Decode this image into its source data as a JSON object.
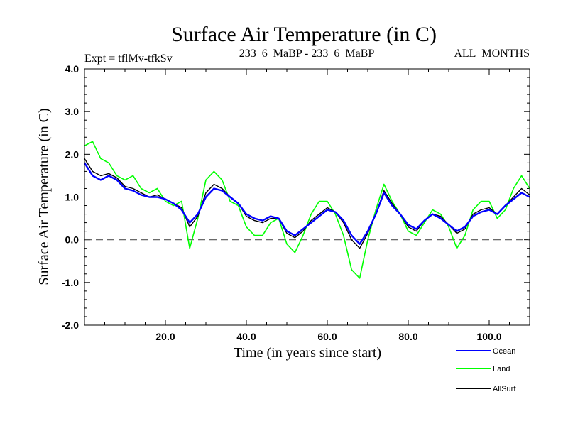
{
  "chart_data": {
    "type": "line",
    "title": "Surface Air Temperature (in C)",
    "subtitle_left": "Expt = tflMv-tfkSv",
    "subtitle_center": "233_6_MaBP - 233_6_MaBP",
    "subtitle_right": "ALL_MONTHS",
    "xlabel": "Time (in years since start)",
    "ylabel": "Surface Air Temperature (in C)",
    "xlim": [
      0,
      110
    ],
    "ylim": [
      -2.0,
      4.0
    ],
    "xticks": [
      20.0,
      40.0,
      60.0,
      80.0,
      100.0
    ],
    "xtick_labels": [
      "20.0",
      "40.0",
      "60.0",
      "80.0",
      "100.0"
    ],
    "yticks": [
      -2.0,
      -1.0,
      0.0,
      1.0,
      2.0,
      3.0,
      4.0
    ],
    "ytick_labels": [
      "-2.0",
      "-1.0",
      "0.0",
      "1.0",
      "2.0",
      "3.0",
      "4.0"
    ],
    "reference_line": {
      "y": 0.0,
      "style": "dashed"
    },
    "x": [
      0,
      2,
      4,
      6,
      8,
      10,
      12,
      14,
      16,
      18,
      20,
      22,
      24,
      26,
      28,
      30,
      32,
      34,
      36,
      38,
      40,
      42,
      44,
      46,
      48,
      50,
      52,
      54,
      56,
      58,
      60,
      62,
      64,
      66,
      68,
      70,
      72,
      74,
      76,
      78,
      80,
      82,
      84,
      86,
      88,
      90,
      92,
      94,
      96,
      98,
      100,
      102,
      104,
      106,
      108,
      110
    ],
    "series": [
      {
        "name": "Ocean",
        "color": "#0000ff",
        "values": [
          1.8,
          1.5,
          1.4,
          1.5,
          1.4,
          1.2,
          1.15,
          1.05,
          1.0,
          1.0,
          0.95,
          0.85,
          0.7,
          0.4,
          0.6,
          1.0,
          1.2,
          1.15,
          1.0,
          0.85,
          0.6,
          0.5,
          0.45,
          0.55,
          0.5,
          0.2,
          0.1,
          0.25,
          0.4,
          0.55,
          0.7,
          0.65,
          0.45,
          0.1,
          -0.1,
          0.2,
          0.6,
          1.1,
          0.8,
          0.6,
          0.35,
          0.25,
          0.45,
          0.6,
          0.5,
          0.35,
          0.2,
          0.3,
          0.55,
          0.65,
          0.7,
          0.6,
          0.8,
          0.95,
          1.1,
          1.0
        ]
      },
      {
        "name": "Land",
        "color": "#00ff00",
        "values": [
          2.2,
          2.3,
          1.9,
          1.8,
          1.5,
          1.4,
          1.5,
          1.2,
          1.1,
          1.2,
          0.9,
          0.8,
          0.9,
          -0.2,
          0.5,
          1.4,
          1.6,
          1.4,
          0.9,
          0.8,
          0.3,
          0.1,
          0.1,
          0.4,
          0.5,
          -0.1,
          -0.3,
          0.1,
          0.6,
          0.9,
          0.9,
          0.6,
          0.1,
          -0.7,
          -0.9,
          0.0,
          0.7,
          1.3,
          0.9,
          0.6,
          0.2,
          0.1,
          0.4,
          0.7,
          0.6,
          0.3,
          -0.2,
          0.1,
          0.7,
          0.9,
          0.9,
          0.5,
          0.7,
          1.2,
          1.5,
          1.2
        ]
      },
      {
        "name": "AllSurf",
        "color": "#000000",
        "values": [
          1.9,
          1.6,
          1.5,
          1.55,
          1.45,
          1.25,
          1.2,
          1.1,
          1.0,
          1.05,
          0.95,
          0.85,
          0.75,
          0.3,
          0.55,
          1.1,
          1.3,
          1.2,
          1.0,
          0.85,
          0.55,
          0.45,
          0.4,
          0.5,
          0.5,
          0.15,
          0.05,
          0.2,
          0.45,
          0.6,
          0.75,
          0.65,
          0.4,
          0.0,
          -0.2,
          0.15,
          0.6,
          1.15,
          0.85,
          0.6,
          0.3,
          0.2,
          0.45,
          0.6,
          0.55,
          0.35,
          0.15,
          0.25,
          0.6,
          0.7,
          0.75,
          0.6,
          0.8,
          1.0,
          1.2,
          1.05
        ]
      }
    ]
  }
}
